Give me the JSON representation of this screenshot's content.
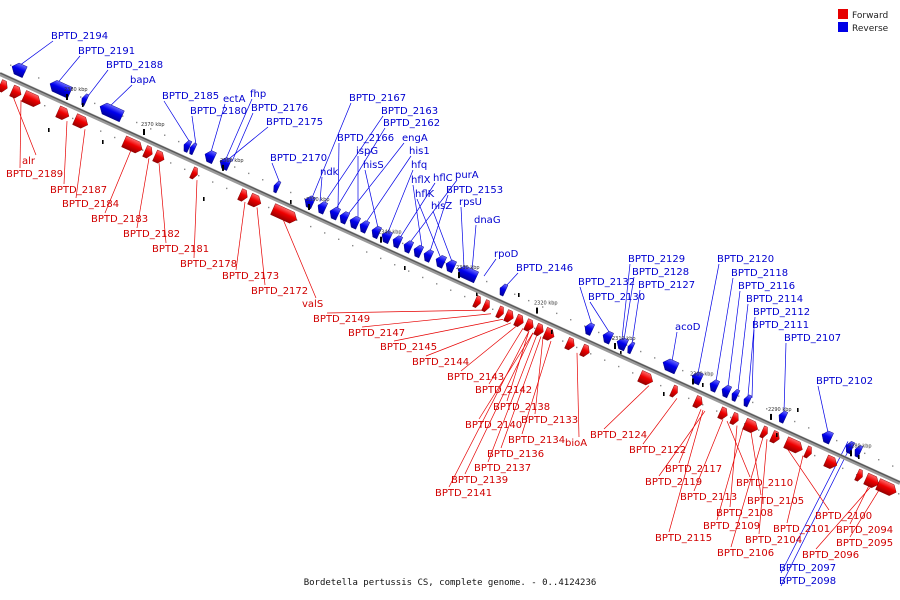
{
  "legend": {
    "forward_label": "Forward",
    "reverse_label": "Reverse",
    "forward_color": "#e60000",
    "reverse_color": "#0000e6"
  },
  "caption": "Bordetella pertussis CS, complete genome. - 0..4124236",
  "diagram": {
    "tick_labels": [
      "2380 kbp",
      "2370 kbp",
      "2360 kbp",
      "2350 kbp",
      "2340 kbp",
      "2330 kbp",
      "2320 kbp",
      "2310 kbp",
      "2300 kbp",
      "2290 kbp",
      "2280 kbp"
    ],
    "reverse_labels": [
      "BPTD_2194",
      "BPTD_2191",
      "BPTD_2188",
      "bapA",
      "BPTD_2185",
      "BPTD_2180",
      "ectA",
      "fhp",
      "BPTD_2176",
      "BPTD_2175",
      "BPTD_2170",
      "BPTD_2167",
      "BPTD_2163",
      "BPTD_2162",
      "BPTD_2166",
      "engA",
      "ispG",
      "his1",
      "hisS",
      "hfq",
      "ndk",
      "hflC",
      "purA",
      "hflX",
      "BPTD_2153",
      "hflK",
      "hisZ",
      "rpsU",
      "dnaG",
      "rpoD",
      "BPTD_2146",
      "BPTD_2132",
      "BPTD_2130",
      "BPTD_2129",
      "BPTD_2128",
      "BPTD_2127",
      "acoD",
      "BPTD_2120",
      "BPTD_2118",
      "BPTD_2116",
      "BPTD_2114",
      "BPTD_2112",
      "BPTD_2111",
      "BPTD_2107",
      "BPTD_2102",
      "BPTD_2097",
      "BPTD_2098"
    ],
    "forward_labels": [
      "alr",
      "BPTD_2189",
      "BPTD_2187",
      "BPTD_2184",
      "BPTD_2183",
      "BPTD_2182",
      "BPTD_2181",
      "BPTD_2178",
      "BPTD_2173",
      "BPTD_2172",
      "valS",
      "BPTD_2149",
      "BPTD_2147",
      "BPTD_2145",
      "BPTD_2144",
      "BPTD_2143",
      "BPTD_2142",
      "BPTD_2138",
      "BPTD_2140",
      "BPTD_2133",
      "BPTD_2134",
      "BPTD_2136",
      "BPTD_2137",
      "BPTD_2139",
      "BPTD_2141",
      "bioA",
      "BPTD_2124",
      "BPTD_2122",
      "BPTD_2117",
      "BPTD_2119",
      "BPTD_2113",
      "BPTD_2110",
      "BPTD_2108",
      "BPTD_2109",
      "BPTD_2115",
      "BPTD_2105",
      "BPTD_2104",
      "BPTD_2106",
      "BPTD_2100",
      "BPTD_2101",
      "BPTD_2094",
      "BPTD_2095",
      "BPTD_2096"
    ]
  }
}
